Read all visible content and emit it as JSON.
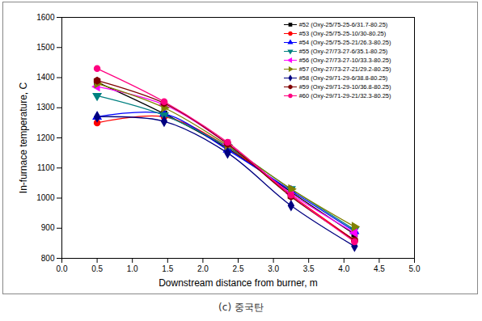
{
  "chart_data": {
    "type": "line",
    "xlabel": "Downstream distance from burner, m",
    "ylabel": "In-furnace temperature, C",
    "caption": "(c) 중국탄",
    "x": [
      0.5,
      1.45,
      2.35,
      3.25,
      4.15
    ],
    "xlim": [
      0,
      5
    ],
    "xticks": [
      {
        "value": 0,
        "label": "0.0"
      },
      0.5,
      {
        "value": 1,
        "label": "1.0"
      },
      1.5,
      {
        "value": 2,
        "label": "2.0"
      },
      2.5,
      {
        "value": 3,
        "label": "3.0"
      },
      3.5,
      {
        "value": 4,
        "label": "4.0"
      },
      4.5,
      {
        "value": 5,
        "label": "5.0"
      }
    ],
    "ylim": [
      800,
      1600
    ],
    "yticks": [
      800,
      900,
      1000,
      1100,
      1200,
      1300,
      1400,
      1500,
      1600
    ],
    "grid": false,
    "legend": "top-right",
    "series": [
      {
        "name": "#52 (Oxy-25/75-25-6/31.7-80.25)",
        "color": "#000000",
        "marker": "square",
        "values": [
          1385,
          1280,
          1165,
          1020,
          880
        ]
      },
      {
        "name": "#53 (Oxy-25/75-25-10/30-80.25)",
        "color": "#ff0000",
        "marker": "circle",
        "values": [
          1250,
          1270,
          1170,
          1010,
          860
        ]
      },
      {
        "name": "#54 (Oxy-25/75-25-21/26.3-80.25)",
        "color": "#0000ff",
        "marker": "triangle-up",
        "values": [
          1270,
          1280,
          1160,
          1025,
          890
        ]
      },
      {
        "name": "#55 (Oxy-27/73-27-6/35.1-80.25)",
        "color": "#008080",
        "marker": "triangle-down",
        "values": [
          1340,
          1275,
          1170,
          1030,
          895
        ]
      },
      {
        "name": "#56 (Oxy-27/73-27-10/33.3-80.25)",
        "color": "#ff00ff",
        "marker": "triangle-left",
        "values": [
          1370,
          1310,
          1180,
          1015,
          885
        ]
      },
      {
        "name": "#57 (Oxy-27/73-27-21/29.2-80.25)",
        "color": "#808000",
        "marker": "triangle-right",
        "values": [
          1380,
          1300,
          1175,
          1030,
          905
        ]
      },
      {
        "name": "#58 (Oxy-29/71-29-6/38.8-80.25)",
        "color": "#000080",
        "marker": "diamond",
        "values": [
          1270,
          1255,
          1150,
          975,
          840
        ]
      },
      {
        "name": "#59 (Oxy-29/71-29-10/36.8-80.25)",
        "color": "#800000",
        "marker": "hexagon",
        "values": [
          1390,
          1315,
          1180,
          1005,
          860
        ]
      },
      {
        "name": "#60 (Oxy-29/71-29-21/32.3-80.25)",
        "color": "#ff0080",
        "marker": "circle",
        "values": [
          1430,
          1320,
          1185,
          1010,
          855
        ]
      }
    ]
  }
}
